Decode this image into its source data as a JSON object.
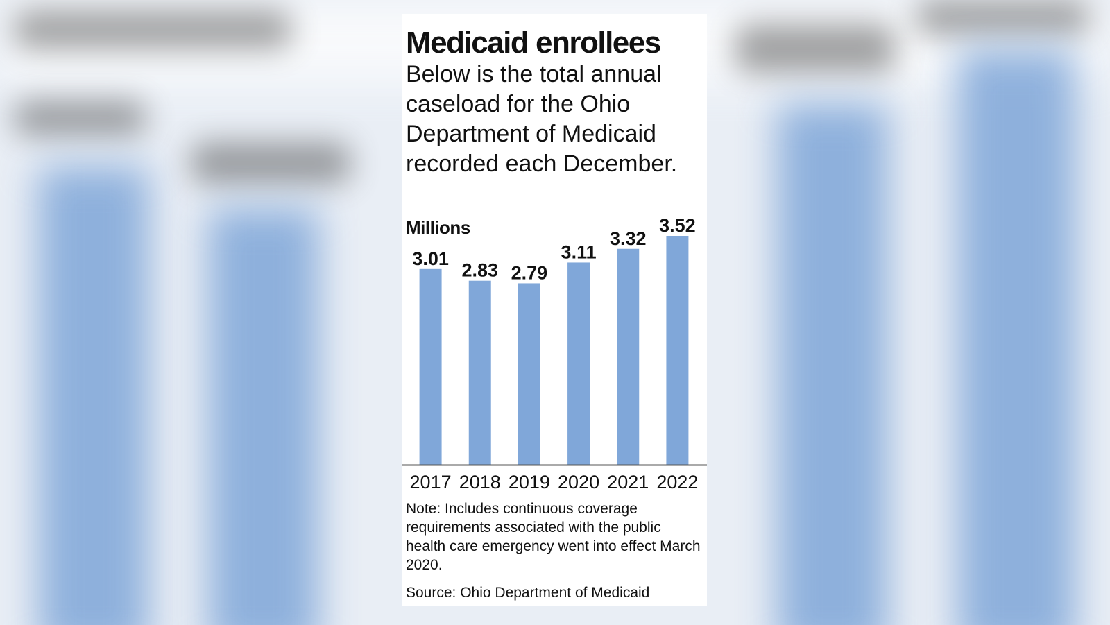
{
  "colors": {
    "bar": "#80a7d9",
    "text": "#111111",
    "axis": "#555555"
  },
  "title": "Medicaid enrollees",
  "subtitle": "Below is the total annual caseload for the Ohio Department of Medicaid recorded each December.",
  "unit_label": "Millions",
  "note": "Note: Includes continuous coverage requirements associated with the public health care emergency went into effect March 2020.",
  "source": "Source: Ohio Department of Medicaid",
  "chart_data": {
    "type": "bar",
    "title": "Medicaid enrollees",
    "ylabel": "Millions",
    "xlabel": "",
    "categories": [
      "2017",
      "2018",
      "2019",
      "2020",
      "2021",
      "2022"
    ],
    "values": [
      3.01,
      2.83,
      2.79,
      3.11,
      3.32,
      3.52
    ],
    "value_labels": [
      "3.01",
      "2.83",
      "2.79",
      "3.11",
      "3.32",
      "3.52"
    ],
    "ylim": [
      0,
      3.52
    ],
    "grid": false,
    "legend": "none"
  }
}
